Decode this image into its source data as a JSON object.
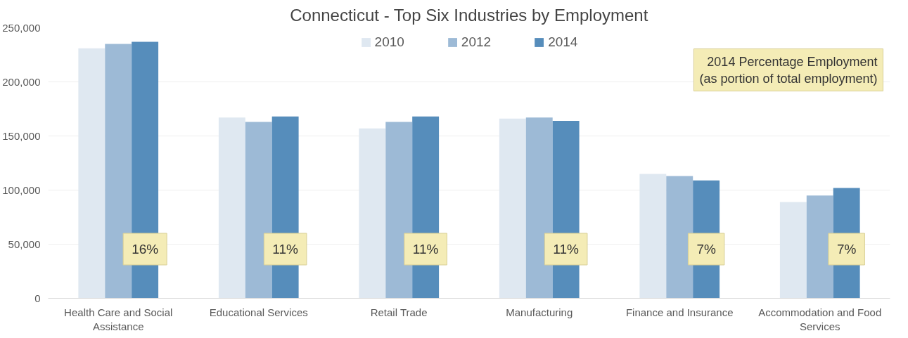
{
  "chart_data": {
    "type": "bar",
    "title": "Connecticut - Top Six Industries by Employment",
    "categories": [
      "Health Care and Social Assistance",
      "Educational Services",
      "Retail Trade",
      "Manufacturing",
      "Finance and Insurance",
      "Accommodation and Food Services"
    ],
    "series": [
      {
        "name": "2010",
        "color": "#dfe8f1",
        "values": [
          231000,
          167000,
          157000,
          166000,
          115000,
          89000
        ]
      },
      {
        "name": "2012",
        "color": "#9dbad6",
        "values": [
          235000,
          163000,
          163000,
          167000,
          113000,
          95000
        ]
      },
      {
        "name": "2014",
        "color": "#568dbb",
        "values": [
          237000,
          168000,
          168000,
          164000,
          109000,
          102000
        ]
      }
    ],
    "ylim": [
      0,
      250000
    ],
    "yticks": [
      {
        "value": 0,
        "label": "0"
      },
      {
        "value": 50000,
        "label": "50,000"
      },
      {
        "value": 100000,
        "label": "100,000"
      },
      {
        "value": 150000,
        "label": "150,000"
      },
      {
        "value": 200000,
        "label": "200,000"
      },
      {
        "value": 250000,
        "label": "250,000"
      }
    ],
    "grid": "y",
    "legend": "top",
    "annotations": [
      "2014 Percentage Employment\n(as portion of total employment)",
      "16%",
      "11%",
      "11%",
      "11%",
      "7%",
      "7%"
    ]
  }
}
